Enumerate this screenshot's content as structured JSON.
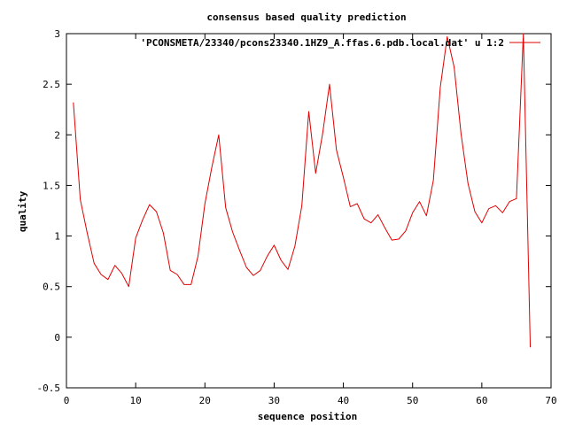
{
  "chart_data": {
    "type": "line",
    "title": "consensus based quality prediction",
    "xlabel": "sequence position",
    "ylabel": "quality",
    "xlim": [
      0,
      70
    ],
    "ylim": [
      -0.5,
      3
    ],
    "x_ticks": [
      0,
      10,
      20,
      30,
      40,
      50,
      60,
      70
    ],
    "y_ticks": [
      -0.5,
      0,
      0.5,
      1,
      1.5,
      2,
      2.5,
      3
    ],
    "x_tick_labels": [
      "0",
      "10",
      "20",
      "30",
      "40",
      "50",
      "60",
      "70"
    ],
    "y_tick_labels": [
      "-0.5",
      "0",
      "0.5",
      "1",
      "1.5",
      "2",
      "2.5",
      "3"
    ],
    "grid": false,
    "legend_position": "top-right",
    "series_color": "#e00000",
    "series": [
      {
        "name": "'PCONSMETA/23340/pcons23340.1HZ9_A.ffas.6.pdb.local.dat' u 1:2",
        "x": [
          1,
          2,
          3,
          4,
          5,
          6,
          7,
          8,
          9,
          10,
          11,
          12,
          13,
          14,
          15,
          16,
          17,
          18,
          19,
          20,
          21,
          22,
          23,
          24,
          25,
          26,
          27,
          28,
          29,
          30,
          31,
          32,
          33,
          34,
          35,
          36,
          37,
          38,
          39,
          40,
          41,
          42,
          43,
          44,
          45,
          46,
          47,
          48,
          49,
          50,
          51,
          52,
          53,
          54,
          55,
          56,
          57,
          58,
          59,
          60,
          61,
          62,
          63,
          64,
          65,
          66,
          67
        ],
        "values": [
          2.32,
          1.36,
          1.03,
          0.73,
          0.62,
          0.57,
          0.71,
          0.63,
          0.5,
          0.98,
          1.16,
          1.31,
          1.24,
          1.03,
          0.66,
          0.62,
          0.52,
          0.52,
          0.8,
          1.32,
          1.68,
          2.0,
          1.28,
          1.04,
          0.86,
          0.69,
          0.61,
          0.66,
          0.8,
          0.91,
          0.76,
          0.67,
          0.9,
          1.3,
          2.23,
          1.62,
          2.01,
          2.5,
          1.85,
          1.58,
          1.29,
          1.32,
          1.17,
          1.13,
          1.21,
          1.08,
          0.96,
          0.97,
          1.05,
          1.23,
          1.34,
          1.2,
          1.55,
          2.47,
          2.97,
          2.67,
          2.01,
          1.52,
          1.24,
          1.13,
          1.27,
          1.3,
          1.23,
          1.34,
          1.37,
          3.0,
          -0.1
        ]
      }
    ]
  }
}
